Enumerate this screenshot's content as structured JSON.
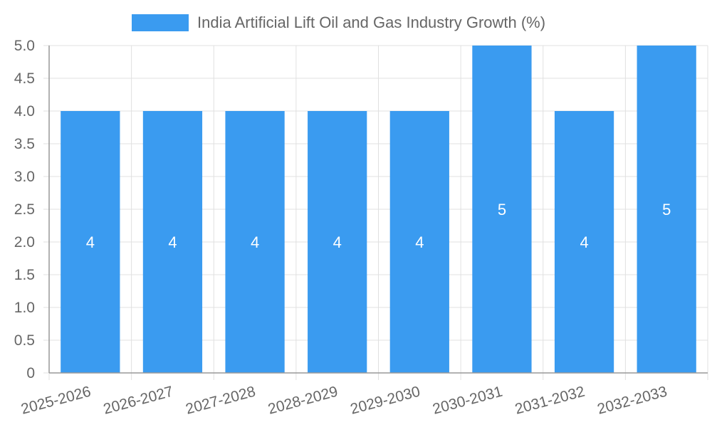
{
  "chart_data": {
    "type": "bar",
    "title": "",
    "xlabel": "",
    "ylabel": "",
    "categories": [
      "2025-2026",
      "2026-2027",
      "2027-2028",
      "2028-2029",
      "2029-2030",
      "2030-2031",
      "2031-2032",
      "2032-2033"
    ],
    "series": [
      {
        "name": "India Artificial Lift Oil and Gas Industry Growth (%)",
        "values": [
          4,
          4,
          4,
          4,
          4,
          5,
          4,
          5
        ],
        "color": "#3a9bf0"
      }
    ],
    "data_labels": [
      "4",
      "4",
      "4",
      "4",
      "4",
      "5",
      "4",
      "5"
    ],
    "ylim": [
      0,
      5
    ],
    "y_ticks": [
      "0",
      "0.5",
      "1.0",
      "1.5",
      "2.0",
      "2.5",
      "3.0",
      "3.5",
      "4.0",
      "4.5",
      "5.0"
    ],
    "grid": true,
    "legend_position": "top-center",
    "colors": {
      "grid": "#e0e0e0",
      "axis": "#999999",
      "tick_text": "#666666",
      "label_text": "#ffffff"
    }
  }
}
